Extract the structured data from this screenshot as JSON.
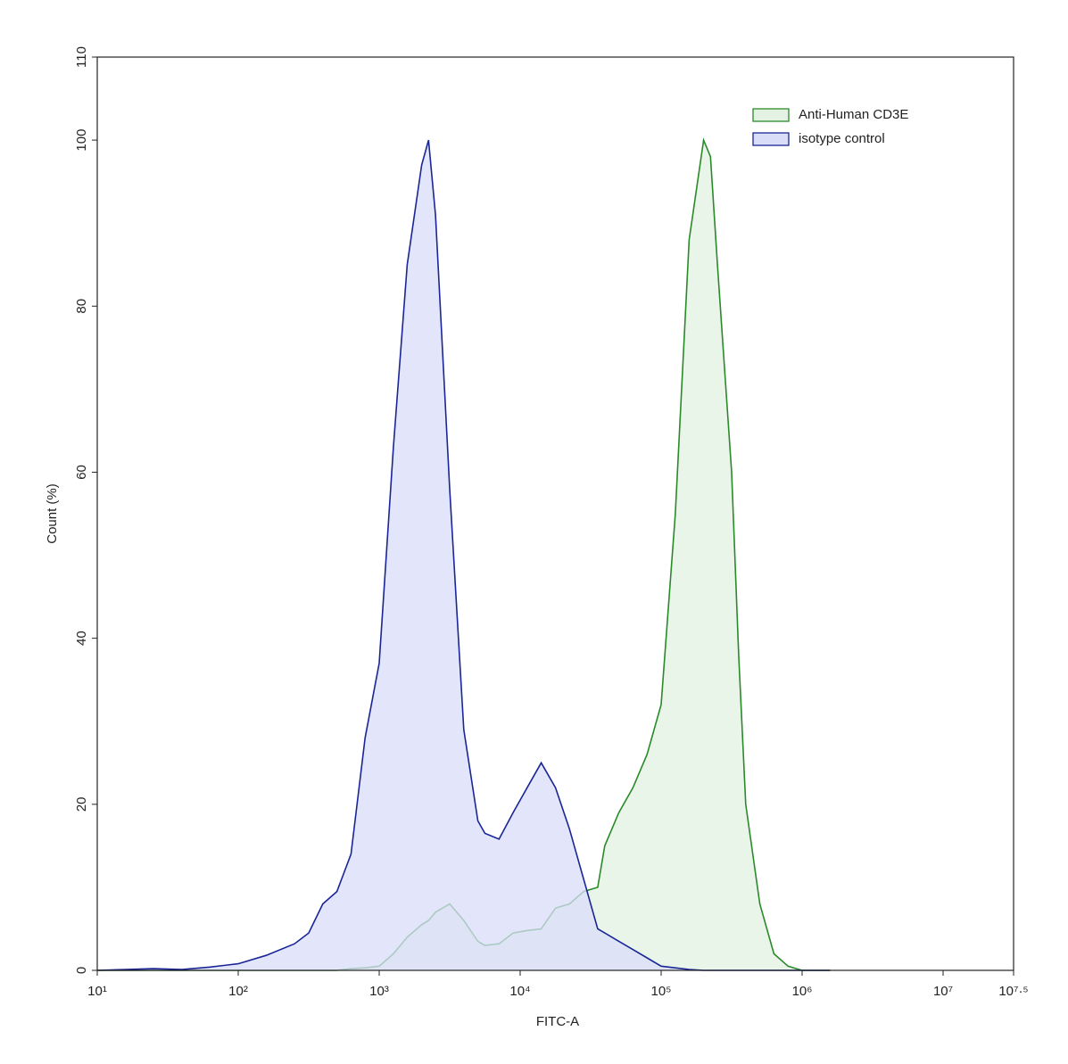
{
  "chart_data": {
    "type": "histogram-overlay",
    "x_label": "FITC-A",
    "y_label": "Count  (%)",
    "xscale": "log",
    "xlim": [
      10,
      31622776.6
    ],
    "ylim": [
      0,
      110
    ],
    "xticks": [
      {
        "value": 10,
        "label": "10¹"
      },
      {
        "value": 100,
        "label": "10²"
      },
      {
        "value": 1000,
        "label": "10³"
      },
      {
        "value": 10000,
        "label": "10⁴"
      },
      {
        "value": 100000,
        "label": "10⁵"
      },
      {
        "value": 1000000,
        "label": "10⁶"
      },
      {
        "value": 10000000,
        "label": "10⁷"
      },
      {
        "value": 31622776.6,
        "label": "10⁷·⁵"
      }
    ],
    "yticks": [
      0,
      20,
      40,
      60,
      80,
      100,
      110
    ],
    "legend": "upper right",
    "x": [
      10,
      15.8,
      25.1,
      39.8,
      63.1,
      100,
      158,
      251,
      316,
      398,
      501,
      631,
      794,
      1000,
      1260,
      1580,
      2000,
      2240,
      2510,
      3160,
      3980,
      5010,
      5620,
      7080,
      8910,
      11200,
      14100,
      17800,
      22400,
      28200,
      35500,
      39800,
      50100,
      63100,
      79400,
      100000,
      126000,
      158000,
      200000,
      224000,
      251000,
      316000,
      355000,
      398000,
      501000,
      631000,
      794000,
      1000000,
      1580000
    ],
    "series": [
      {
        "name": "Anti-Human CD3E",
        "color": "#2a8a2a",
        "fill": "#e3f2e3",
        "values": [
          0,
          0,
          0,
          0,
          0,
          0,
          0,
          0,
          0,
          0,
          0,
          0.2,
          0.3,
          0.5,
          2,
          4,
          5.5,
          6,
          7,
          8,
          6,
          3.5,
          3,
          3.2,
          4.5,
          4.8,
          5,
          7.5,
          8,
          9.5,
          10,
          15,
          19,
          22,
          26,
          32,
          55,
          88,
          100,
          98,
          85,
          60,
          38,
          20,
          8,
          2,
          0.5,
          0,
          0
        ]
      },
      {
        "name": "isotype control",
        "color": "#1a2696",
        "fill": "#d9ddf8",
        "values": [
          0,
          0.1,
          0.2,
          0.1,
          0.4,
          0.8,
          1.8,
          3.2,
          4.5,
          8,
          9.5,
          14,
          28,
          37,
          63,
          85,
          97,
          100,
          91,
          58,
          29,
          18,
          16.5,
          15.8,
          19,
          22,
          25,
          22,
          17,
          11,
          5,
          4.5,
          3.5,
          2.5,
          1.5,
          0.5,
          0.3,
          0.1,
          0,
          0,
          0,
          0,
          0,
          0,
          0,
          0,
          0,
          0,
          0
        ]
      }
    ]
  }
}
